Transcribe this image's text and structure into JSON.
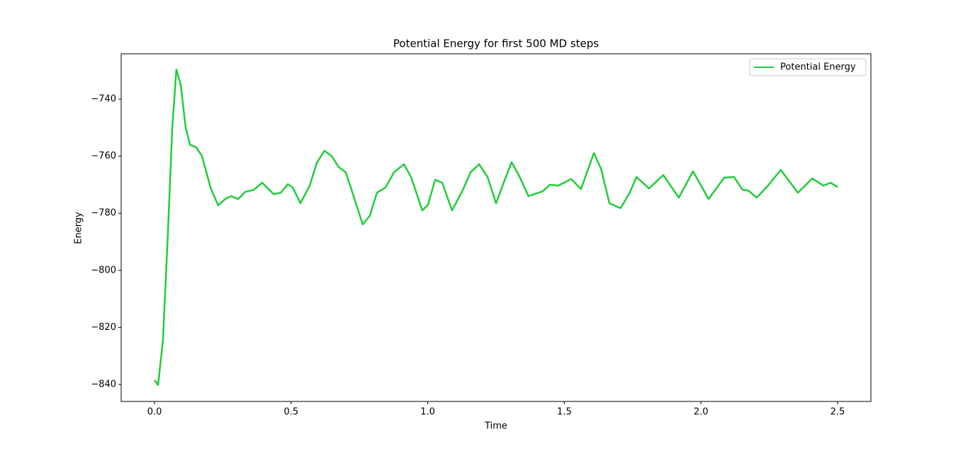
{
  "chart_data": {
    "type": "line",
    "title": "Potential Energy for first 500 MD steps",
    "x_label": "Time",
    "y_label": "Energy",
    "xlim": [
      -0.122,
      2.622
    ],
    "ylim": [
      -845.96,
      -724.1
    ],
    "xticks": [
      {
        "value": 0,
        "label": "0.0"
      },
      0.5,
      {
        "value": 1,
        "label": "1.0"
      },
      1.5,
      {
        "value": 2,
        "label": "2.0"
      },
      2.5
    ],
    "yticks": [
      {
        "value": -840,
        "label": "−840"
      },
      {
        "value": -820,
        "label": "−820"
      },
      {
        "value": -800,
        "label": "−800"
      },
      {
        "value": -780,
        "label": "−780"
      },
      {
        "value": -760,
        "label": "−760"
      },
      {
        "value": -740,
        "label": "−740"
      }
    ],
    "legend": "upper right",
    "series": [
      {
        "name": "Potential Energy",
        "color": "#22cc3a",
        "x": [
          0,
          0.013,
          0.031,
          0.049,
          0.065,
          0.08,
          0.096,
          0.114,
          0.13,
          0.153,
          0.174,
          0.205,
          0.233,
          0.259,
          0.28,
          0.306,
          0.332,
          0.363,
          0.394,
          0.436,
          0.462,
          0.488,
          0.506,
          0.534,
          0.568,
          0.594,
          0.622,
          0.648,
          0.674,
          0.7,
          0.731,
          0.762,
          0.788,
          0.814,
          0.845,
          0.877,
          0.913,
          0.939,
          0.98,
          1.001,
          1.027,
          1.053,
          1.089,
          1.126,
          1.157,
          1.188,
          1.219,
          1.25,
          1.281,
          1.307,
          1.333,
          1.369,
          1.421,
          1.447,
          1.478,
          1.525,
          1.561,
          1.608,
          1.634,
          1.665,
          1.706,
          1.738,
          1.764,
          1.81,
          1.862,
          1.919,
          1.971,
          2.028,
          2.085,
          2.121,
          2.152,
          2.173,
          2.204,
          2.241,
          2.292,
          2.355,
          2.407,
          2.448,
          2.474,
          2.5
        ],
        "values": [
          -838.5,
          -840.2,
          -824.4,
          -787,
          -750,
          -729.6,
          -735,
          -750,
          -756,
          -756.9,
          -760,
          -771,
          -777.2,
          -775,
          -774,
          -775,
          -772.5,
          -771.8,
          -769.3,
          -773.3,
          -772.8,
          -769.8,
          -771,
          -776.5,
          -770.3,
          -762.3,
          -758.1,
          -759.9,
          -763.8,
          -765.6,
          -774.7,
          -783.9,
          -780.9,
          -772.8,
          -771,
          -765.6,
          -762.8,
          -767.3,
          -779,
          -777,
          -768.3,
          -769.3,
          -779,
          -772.3,
          -765.6,
          -762.8,
          -767.3,
          -776.5,
          -768.5,
          -762.1,
          -766.6,
          -774,
          -772.3,
          -770,
          -770.3,
          -768,
          -771.5,
          -758.9,
          -764.3,
          -776.5,
          -778.2,
          -773,
          -767.3,
          -771.3,
          -766.6,
          -774.5,
          -765.3,
          -775,
          -767.5,
          -767.3,
          -771.8,
          -772,
          -774.5,
          -770.8,
          -764.8,
          -772.8,
          -767.8,
          -770.3,
          -769.3,
          -770.8
        ]
      }
    ]
  }
}
